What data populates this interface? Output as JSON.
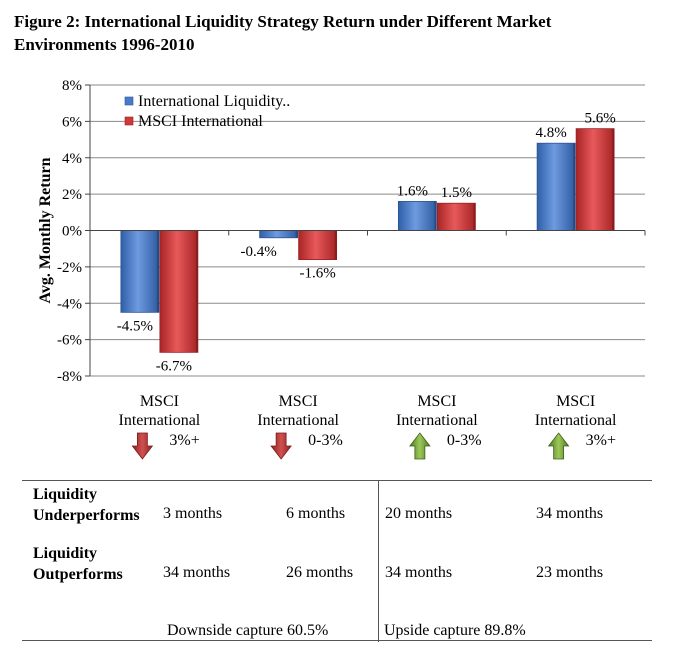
{
  "title": "Figure 2: International Liquidity Strategy Return under Different Market Environments 1996-2010",
  "chart_data": {
    "type": "bar",
    "title": "Figure 2: International Liquidity Strategy Return under Different Market Environments 1996-2010",
    "ylabel": "Avg. Monthly Return",
    "xlabel": "",
    "ylim": [
      -8,
      8
    ],
    "yticks": [
      8,
      6,
      4,
      2,
      0,
      -2,
      -4,
      -6,
      -8
    ],
    "ytick_labels": [
      "8%",
      "6%",
      "4%",
      "2%",
      "0%",
      "-2%",
      "-4%",
      "-6%",
      "-8%"
    ],
    "categories": [
      {
        "line1": "MSCI",
        "line2": "International",
        "suffix": "3%+",
        "arrow": "down"
      },
      {
        "line1": "MSCI",
        "line2": "International",
        "suffix": "0-3%",
        "arrow": "down"
      },
      {
        "line1": "MSCI",
        "line2": "International",
        "suffix": "0-3%",
        "arrow": "up"
      },
      {
        "line1": "MSCI",
        "line2": "International",
        "suffix": "3%+",
        "arrow": "up"
      }
    ],
    "series": [
      {
        "name": "International Liquidity..",
        "values": [
          -4.5,
          -0.4,
          1.6,
          4.8
        ],
        "labels": [
          "-4.5%",
          "-0.4%",
          "1.6%",
          "4.8%"
        ],
        "color": "#4a7bc8"
      },
      {
        "name": "MSCI International",
        "values": [
          -6.7,
          -1.6,
          1.5,
          5.6
        ],
        "labels": [
          "-6.7%",
          "-1.6%",
          "1.5%",
          "5.6%"
        ],
        "color": "#d0383a"
      }
    ],
    "legend_position": "top-left",
    "arrow_colors": {
      "down": "#b23232",
      "up": "#6b9a2e"
    }
  },
  "table": {
    "rows": [
      {
        "label_line1": "Liquidity",
        "label_line2": "Underperforms",
        "cells": [
          "3 months",
          "6 months",
          "20 months",
          "34 months"
        ]
      },
      {
        "label_line1": "Liquidity",
        "label_line2": "Outperforms",
        "cells": [
          "34 months",
          "26 months",
          "34 months",
          "23 months"
        ]
      }
    ],
    "downside_capture": "Downside capture 60.5%",
    "upside_capture": "Upside capture 89.8%"
  }
}
